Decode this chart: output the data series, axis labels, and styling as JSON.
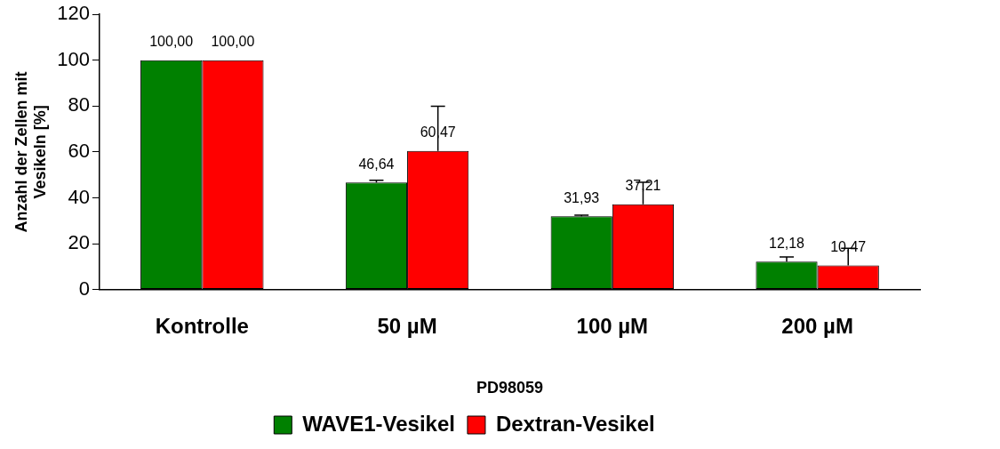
{
  "chart_data": {
    "type": "bar",
    "xlabel": "PD98059",
    "ylabel": "Anzahl der Zellen mit Vesikeln [%]",
    "categories": [
      "Kontrolle",
      "50 µM",
      "100 µM",
      "200 µM"
    ],
    "series": [
      {
        "name": "WAVE1-Vesikel",
        "color": "#008000",
        "values": [
          100.0,
          46.64,
          31.93,
          12.18
        ],
        "errors": [
          null,
          [
            46.64,
            47.6
          ],
          [
            31.93,
            32.4
          ],
          [
            12.18,
            14.2
          ]
        ]
      },
      {
        "name": "Dextran-Vesikel",
        "color": "#ff0000",
        "values": [
          100.0,
          60.47,
          37.21,
          10.47
        ],
        "errors": [
          null,
          [
            60.47,
            79.9
          ],
          [
            37.21,
            46.8
          ],
          [
            10.47,
            18
          ]
        ]
      }
    ],
    "value_labels": [
      [
        "100,00",
        "46,64",
        "31,93",
        "12,18"
      ],
      [
        "100,00",
        "60,47",
        "37,21",
        "10,47"
      ]
    ],
    "ylim": [
      0,
      120
    ],
    "yticks": [
      0,
      20,
      40,
      60,
      80,
      100,
      120
    ],
    "grid": false,
    "legend": "bottom"
  }
}
